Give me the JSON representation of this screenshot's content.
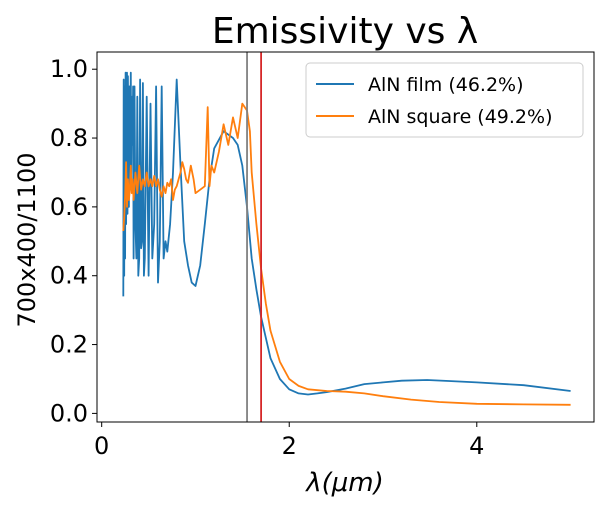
{
  "chart_data": {
    "type": "line",
    "title": "Emissivity vs λ",
    "xlabel": "λ(μm)",
    "ylabel": "700x400/1100",
    "xlim": [
      -0.05,
      5.25
    ],
    "ylim": [
      -0.025,
      1.05
    ],
    "xticks": [
      0,
      2,
      4
    ],
    "yticks": [
      0.0,
      0.2,
      0.4,
      0.6,
      0.8,
      1.0
    ],
    "grid": false,
    "legend_position": "top-right",
    "vlines": [
      {
        "x": 1.55,
        "color": "#808080"
      },
      {
        "x": 1.7,
        "color": "#d62728"
      }
    ],
    "series": [
      {
        "name": "AlN film (46.2%)",
        "color": "#1f77b4",
        "x": [
          0.23,
          0.235,
          0.24,
          0.245,
          0.25,
          0.255,
          0.26,
          0.27,
          0.275,
          0.28,
          0.29,
          0.295,
          0.3,
          0.31,
          0.315,
          0.32,
          0.33,
          0.335,
          0.34,
          0.35,
          0.36,
          0.37,
          0.38,
          0.39,
          0.4,
          0.41,
          0.42,
          0.43,
          0.44,
          0.45,
          0.46,
          0.48,
          0.5,
          0.52,
          0.54,
          0.56,
          0.58,
          0.6,
          0.62,
          0.64,
          0.66,
          0.68,
          0.7,
          0.73,
          0.76,
          0.8,
          0.84,
          0.88,
          0.92,
          0.96,
          1.0,
          1.05,
          1.1,
          1.15,
          1.2,
          1.3,
          1.4,
          1.45,
          1.5,
          1.55,
          1.6,
          1.65,
          1.7,
          1.75,
          1.8,
          1.9,
          2.0,
          2.1,
          2.2,
          2.3,
          2.4,
          2.6,
          2.8,
          3.0,
          3.2,
          3.47,
          3.7,
          4.0,
          4.5,
          5.0
        ],
        "y": [
          0.34,
          0.97,
          0.4,
          0.95,
          0.45,
          0.99,
          0.55,
          0.99,
          0.58,
          0.98,
          0.6,
          0.95,
          0.7,
          0.99,
          0.68,
          0.92,
          0.78,
          0.95,
          0.45,
          0.95,
          0.55,
          0.45,
          0.92,
          0.4,
          0.45,
          0.97,
          0.48,
          0.5,
          0.96,
          0.4,
          0.45,
          0.92,
          0.4,
          0.9,
          0.45,
          0.55,
          0.95,
          0.38,
          0.5,
          0.95,
          0.45,
          0.5,
          0.47,
          0.55,
          0.7,
          0.97,
          0.72,
          0.5,
          0.43,
          0.38,
          0.37,
          0.43,
          0.55,
          0.68,
          0.77,
          0.82,
          0.8,
          0.78,
          0.72,
          0.6,
          0.45,
          0.36,
          0.28,
          0.22,
          0.16,
          0.1,
          0.07,
          0.058,
          0.055,
          0.058,
          0.062,
          0.072,
          0.085,
          0.09,
          0.095,
          0.097,
          0.094,
          0.09,
          0.082,
          0.065
        ]
      },
      {
        "name": "AlN square (49.2%)",
        "color": "#ff7f0e",
        "x": [
          0.23,
          0.24,
          0.25,
          0.26,
          0.27,
          0.28,
          0.29,
          0.3,
          0.31,
          0.32,
          0.33,
          0.34,
          0.35,
          0.36,
          0.38,
          0.4,
          0.42,
          0.44,
          0.46,
          0.48,
          0.5,
          0.52,
          0.54,
          0.56,
          0.58,
          0.6,
          0.62,
          0.64,
          0.66,
          0.68,
          0.7,
          0.72,
          0.74,
          0.76,
          0.78,
          0.8,
          0.82,
          0.84,
          0.86,
          0.88,
          0.9,
          0.92,
          0.95,
          0.98,
          1.0,
          1.05,
          1.1,
          1.13,
          1.15,
          1.17,
          1.2,
          1.25,
          1.3,
          1.35,
          1.4,
          1.45,
          1.5,
          1.55,
          1.58,
          1.6,
          1.65,
          1.7,
          1.75,
          1.8,
          1.9,
          2.0,
          2.1,
          2.2,
          2.4,
          2.6,
          2.8,
          3.0,
          3.3,
          3.6,
          4.0,
          4.5,
          5.0
        ],
        "y": [
          0.53,
          0.57,
          0.63,
          0.73,
          0.6,
          0.68,
          0.62,
          0.65,
          0.72,
          0.64,
          0.68,
          0.62,
          0.66,
          0.7,
          0.64,
          0.72,
          0.65,
          0.68,
          0.66,
          0.7,
          0.66,
          0.68,
          0.66,
          0.69,
          0.66,
          0.68,
          0.65,
          0.63,
          0.66,
          0.64,
          0.67,
          0.66,
          0.68,
          0.62,
          0.65,
          0.66,
          0.68,
          0.7,
          0.73,
          0.71,
          0.68,
          0.67,
          0.72,
          0.68,
          0.64,
          0.65,
          0.66,
          0.89,
          0.66,
          0.72,
          0.7,
          0.76,
          0.84,
          0.78,
          0.86,
          0.8,
          0.9,
          0.88,
          0.82,
          0.7,
          0.55,
          0.42,
          0.32,
          0.24,
          0.15,
          0.1,
          0.08,
          0.07,
          0.065,
          0.063,
          0.058,
          0.05,
          0.04,
          0.033,
          0.028,
          0.026,
          0.025
        ]
      }
    ]
  }
}
